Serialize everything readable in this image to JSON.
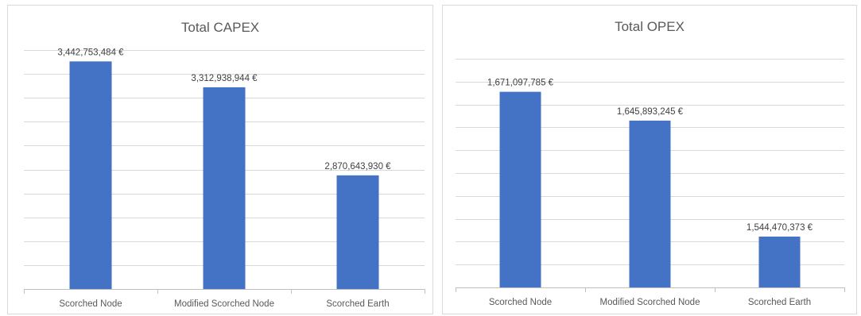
{
  "chart_data": [
    {
      "type": "bar",
      "title": "Total CAPEX",
      "categories": [
        "Scorched Node",
        "Modified Scorched Node",
        "Scorched Earth"
      ],
      "values": [
        3442753484,
        3312938944,
        2870643930
      ],
      "value_labels": [
        "3,442,753,484 €",
        "3,312,938,944 €",
        "2,870,643,930 €"
      ],
      "ylim": [
        2300000000,
        3500000000
      ],
      "gridlines": 10,
      "grid": true,
      "y_tick_labels_shown": false,
      "bar_color": "#4472C4"
    },
    {
      "type": "bar",
      "title": "Total OPEX",
      "categories": [
        "Scorched Node",
        "Modified Scorched Node",
        "Scorched Earth"
      ],
      "values": [
        1671097785,
        1645893245,
        1544470373
      ],
      "value_labels": [
        "1,671,097,785 €",
        "1,645,893,245 €",
        "1,544,470,373 €"
      ],
      "ylim": [
        1500000000,
        1700000000
      ],
      "gridlines": 10,
      "grid": true,
      "y_tick_labels_shown": false,
      "bar_color": "#4472C4"
    }
  ]
}
